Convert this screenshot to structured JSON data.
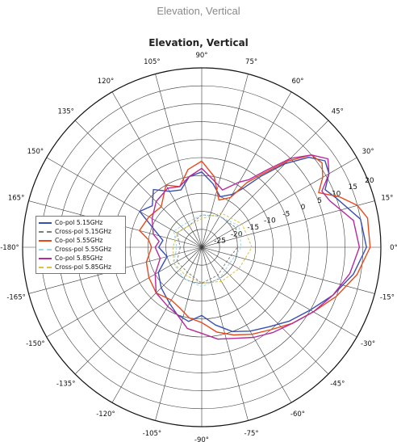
{
  "page_caption": "Elevation, Vertical",
  "chart_data": {
    "type": "polar-line",
    "title": "Elevation, Vertical",
    "angle_ticks": [
      {
        "deg": 0,
        "label": "0°"
      },
      {
        "deg": 15,
        "label": "15°"
      },
      {
        "deg": 30,
        "label": "30°"
      },
      {
        "deg": 45,
        "label": "45°"
      },
      {
        "deg": 60,
        "label": "60°"
      },
      {
        "deg": 75,
        "label": "75°"
      },
      {
        "deg": 90,
        "label": "90°"
      },
      {
        "deg": 105,
        "label": "105°"
      },
      {
        "deg": 120,
        "label": "120°"
      },
      {
        "deg": 135,
        "label": "135°"
      },
      {
        "deg": 150,
        "label": "150°"
      },
      {
        "deg": 165,
        "label": "165°"
      },
      {
        "deg": 180,
        "label": "-180°"
      },
      {
        "deg": -165,
        "label": "-165°"
      },
      {
        "deg": -150,
        "label": "-150°"
      },
      {
        "deg": -135,
        "label": "-135°"
      },
      {
        "deg": -120,
        "label": "-120°"
      },
      {
        "deg": -105,
        "label": "-105°"
      },
      {
        "deg": -90,
        "label": "-90°"
      },
      {
        "deg": -75,
        "label": "-75°"
      },
      {
        "deg": -60,
        "label": "-60°"
      },
      {
        "deg": -45,
        "label": "-45°"
      },
      {
        "deg": -30,
        "label": "-30°"
      },
      {
        "deg": -15,
        "label": "-15°"
      }
    ],
    "r_range": [
      -30,
      20
    ],
    "r_ticks": [
      {
        "value": -25,
        "label": "-25"
      },
      {
        "value": -20,
        "label": "-20"
      },
      {
        "value": -15,
        "label": "-15"
      },
      {
        "value": -10,
        "label": "-10"
      },
      {
        "value": -5,
        "label": "-5"
      },
      {
        "value": 0,
        "label": "0"
      },
      {
        "value": 5,
        "label": "5"
      },
      {
        "value": 10,
        "label": "10"
      },
      {
        "value": 15,
        "label": "15"
      },
      {
        "value": 20,
        "label": "20"
      }
    ],
    "r_label_angle_deg": 22,
    "grid": true,
    "legend_position": "center-left",
    "series": [
      {
        "name": "Co-pol 5.15GHz",
        "color": "#3a4fb0",
        "style": "solid",
        "points": [
          [
            -180,
            -18
          ],
          [
            -165,
            -20
          ],
          [
            -150,
            -16
          ],
          [
            -135,
            -14
          ],
          [
            -120,
            -12
          ],
          [
            -110,
            -10
          ],
          [
            -100,
            -9
          ],
          [
            -90,
            -11
          ],
          [
            -80,
            -8
          ],
          [
            -70,
            -5
          ],
          [
            -60,
            -3
          ],
          [
            -50,
            -1
          ],
          [
            -40,
            2
          ],
          [
            -30,
            5
          ],
          [
            -20,
            9
          ],
          [
            -10,
            13
          ],
          [
            0,
            16
          ],
          [
            10,
            15
          ],
          [
            20,
            10
          ],
          [
            25,
            8
          ],
          [
            30,
            11
          ],
          [
            35,
            12
          ],
          [
            40,
            9
          ],
          [
            45,
            3
          ],
          [
            50,
            -4
          ],
          [
            55,
            -10
          ],
          [
            60,
            -13
          ],
          [
            70,
            -15
          ],
          [
            80,
            -12
          ],
          [
            90,
            -9
          ],
          [
            100,
            -10
          ],
          [
            110,
            -13
          ],
          [
            120,
            -12
          ],
          [
            130,
            -9
          ],
          [
            140,
            -12
          ],
          [
            150,
            -10
          ],
          [
            160,
            -16
          ],
          [
            170,
            -19
          ]
        ]
      },
      {
        "name": "Cross-pol 5.15GHz",
        "color": "#7f7f7f",
        "style": "dashed",
        "points": [
          [
            -180,
            -24
          ],
          [
            -150,
            -22
          ],
          [
            -120,
            -22
          ],
          [
            -90,
            -20
          ],
          [
            -60,
            -21
          ],
          [
            -30,
            -22
          ],
          [
            0,
            -20
          ],
          [
            30,
            -19
          ],
          [
            60,
            -20
          ],
          [
            90,
            -21
          ],
          [
            120,
            -23
          ],
          [
            150,
            -22
          ]
        ]
      },
      {
        "name": "Co-pol 5.55GHz",
        "color": "#e64a1c",
        "style": "solid",
        "points": [
          [
            -180,
            -16
          ],
          [
            -165,
            -14
          ],
          [
            -150,
            -13
          ],
          [
            -135,
            -12
          ],
          [
            -120,
            -13
          ],
          [
            -110,
            -12
          ],
          [
            -100,
            -10
          ],
          [
            -90,
            -9
          ],
          [
            -80,
            -6
          ],
          [
            -70,
            -4
          ],
          [
            -60,
            -2
          ],
          [
            -50,
            0
          ],
          [
            -40,
            3
          ],
          [
            -30,
            6
          ],
          [
            -20,
            10
          ],
          [
            -10,
            14
          ],
          [
            0,
            17
          ],
          [
            10,
            17
          ],
          [
            15,
            15
          ],
          [
            20,
            11
          ],
          [
            25,
            6
          ],
          [
            30,
            9
          ],
          [
            35,
            11
          ],
          [
            40,
            10
          ],
          [
            45,
            4
          ],
          [
            50,
            -3
          ],
          [
            55,
            -8
          ],
          [
            60,
            -14
          ],
          [
            70,
            -16
          ],
          [
            80,
            -10
          ],
          [
            90,
            -6
          ],
          [
            100,
            -8
          ],
          [
            110,
            -12
          ],
          [
            120,
            -10
          ],
          [
            135,
            -14
          ],
          [
            150,
            -13
          ],
          [
            165,
            -12
          ],
          [
            172,
            -15
          ]
        ]
      },
      {
        "name": "Cross-pol 5.55GHz",
        "color": "#9fd8e8",
        "style": "dashed",
        "points": [
          [
            -180,
            -23
          ],
          [
            -150,
            -21
          ],
          [
            -120,
            -20
          ],
          [
            -90,
            -19
          ],
          [
            -60,
            -20
          ],
          [
            -30,
            -21
          ],
          [
            0,
            -19
          ],
          [
            30,
            -18
          ],
          [
            60,
            -20
          ],
          [
            90,
            -21
          ],
          [
            120,
            -22
          ],
          [
            150,
            -21
          ]
        ]
      },
      {
        "name": "Co-pol 5.85GHz",
        "color": "#b62a9c",
        "style": "solid",
        "points": [
          [
            -180,
            -17
          ],
          [
            -165,
            -18
          ],
          [
            -150,
            -15
          ],
          [
            -135,
            -12
          ],
          [
            -120,
            -11
          ],
          [
            -110,
            -10
          ],
          [
            -100,
            -7
          ],
          [
            -90,
            -6
          ],
          [
            -80,
            -4
          ],
          [
            -70,
            -3
          ],
          [
            -60,
            -1
          ],
          [
            -50,
            1
          ],
          [
            -40,
            3
          ],
          [
            -30,
            6
          ],
          [
            -20,
            9
          ],
          [
            -10,
            12
          ],
          [
            0,
            14
          ],
          [
            10,
            13
          ],
          [
            20,
            8
          ],
          [
            25,
            7
          ],
          [
            30,
            11
          ],
          [
            35,
            13
          ],
          [
            40,
            10
          ],
          [
            45,
            5
          ],
          [
            50,
            -2
          ],
          [
            55,
            -7
          ],
          [
            60,
            -9
          ],
          [
            70,
            -13
          ],
          [
            80,
            -11
          ],
          [
            90,
            -8
          ],
          [
            100,
            -10
          ],
          [
            110,
            -12
          ],
          [
            120,
            -11
          ],
          [
            135,
            -12
          ],
          [
            150,
            -14
          ],
          [
            165,
            -16
          ],
          [
            172,
            -18
          ]
        ]
      },
      {
        "name": "Cross-pol 5.85GHz",
        "color": "#d8c24a",
        "style": "dashed",
        "points": [
          [
            -180,
            -22
          ],
          [
            -150,
            -21
          ],
          [
            -120,
            -21
          ],
          [
            -90,
            -20
          ],
          [
            -60,
            -19
          ],
          [
            -30,
            -18
          ],
          [
            0,
            -16
          ],
          [
            30,
            -17
          ],
          [
            60,
            -19
          ],
          [
            90,
            -22
          ],
          [
            120,
            -23
          ],
          [
            150,
            -22
          ]
        ]
      }
    ]
  }
}
